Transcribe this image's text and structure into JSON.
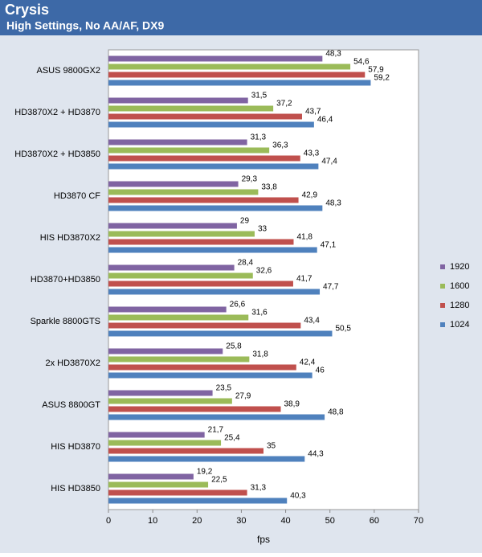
{
  "chart_data": {
    "type": "bar",
    "orientation": "horizontal",
    "title": "Crysis",
    "subtitle": "High Settings, No AA/AF, DX9",
    "x_label": "fps",
    "categories": [
      "ASUS 9800GX2",
      "HD3870X2 + HD3870",
      "HD3870X2 + HD3850",
      "HD3870 CF",
      "HIS HD3870X2",
      "HD3870+HD3850",
      "Sparkle 8800GTS",
      "2x HD3870X2",
      "ASUS 8800GT",
      "HIS HD3870",
      "HIS HD3850"
    ],
    "series": [
      {
        "name": "1920",
        "color": "#8064a2",
        "values": [
          48.3,
          31.5,
          31.3,
          29.3,
          29,
          28.4,
          26.6,
          25.8,
          23.5,
          21.7,
          19.2
        ],
        "value_labels": [
          "48,3",
          "31,5",
          "31,3",
          "29,3",
          "29",
          "28,4",
          "26,6",
          "25,8",
          "23,5",
          "21,7",
          "19,2"
        ]
      },
      {
        "name": "1600",
        "color": "#9bbb59",
        "values": [
          54.6,
          37.2,
          36.3,
          33.8,
          33,
          32.6,
          31.6,
          31.8,
          27.9,
          25.4,
          22.5
        ],
        "value_labels": [
          "54,6",
          "37,2",
          "36,3",
          "33,8",
          "33",
          "32,6",
          "31,6",
          "31,8",
          "27,9",
          "25,4",
          "22,5"
        ]
      },
      {
        "name": "1280",
        "color": "#c0504d",
        "values": [
          57.9,
          43.7,
          43.3,
          42.9,
          41.8,
          41.7,
          43.4,
          42.4,
          38.9,
          35,
          31.3
        ],
        "value_labels": [
          "57,9",
          "43,7",
          "43,3",
          "42,9",
          "41,8",
          "41,7",
          "43,4",
          "42,4",
          "38,9",
          "35",
          "31,3"
        ]
      },
      {
        "name": "1024",
        "color": "#4f81bd",
        "values": [
          59.2,
          46.4,
          47.4,
          48.3,
          47.1,
          47.7,
          50.5,
          46,
          48.8,
          44.3,
          40.3
        ],
        "value_labels": [
          "59,2",
          "46,4",
          "47,4",
          "48,3",
          "47,1",
          "47,7",
          "50,5",
          "46",
          "48,8",
          "44,3",
          "40,3"
        ]
      }
    ],
    "xlim": [
      0,
      70
    ],
    "xticks": [
      0,
      10,
      20,
      30,
      40,
      50,
      60,
      70
    ],
    "grid": false,
    "legend": "right"
  }
}
